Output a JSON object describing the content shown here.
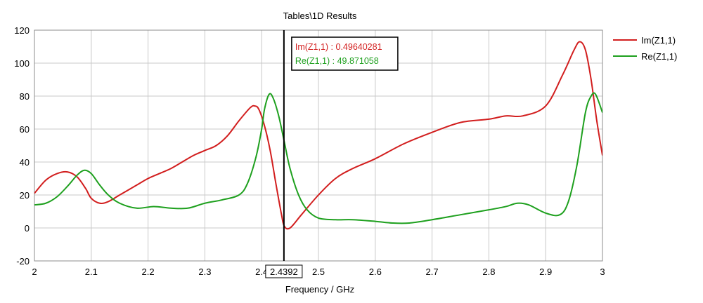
{
  "colors": {
    "im": "#d21e1e",
    "re": "#1ea01e",
    "grid": "#c8c8c8",
    "axis": "#000000",
    "marker": "#000000"
  },
  "chart_data": {
    "type": "line",
    "title": "Tables\\1D Results",
    "xlabel": "Frequency / GHz",
    "ylabel": "",
    "xlim": [
      2,
      3
    ],
    "ylim": [
      -20,
      120
    ],
    "grid": true,
    "legend_placement": "right-top",
    "x_ticks": [
      {
        "value": 2,
        "label": "2"
      },
      {
        "value": 2.1,
        "label": "2.1"
      },
      {
        "value": 2.2,
        "label": "2.2"
      },
      {
        "value": 2.3,
        "label": "2.3"
      },
      {
        "value": 2.4,
        "label": "2.4"
      },
      {
        "value": 2.5,
        "label": "2.5"
      },
      {
        "value": 2.6,
        "label": "2.6"
      },
      {
        "value": 2.7,
        "label": "2.7"
      },
      {
        "value": 2.8,
        "label": "2.8"
      },
      {
        "value": 2.9,
        "label": "2.9"
      },
      {
        "value": 3,
        "label": "3"
      }
    ],
    "y_ticks": [
      {
        "value": 120,
        "label": "120"
      },
      {
        "value": 100,
        "label": "100"
      },
      {
        "value": 80,
        "label": "80"
      },
      {
        "value": 60,
        "label": "60"
      },
      {
        "value": 40,
        "label": "40"
      },
      {
        "value": 20,
        "label": "20"
      },
      {
        "value": 0,
        "label": "0"
      },
      {
        "value": -20,
        "label": "-20"
      }
    ],
    "series": [
      {
        "name": "Im(Z1,1)",
        "color": "#d21e1e",
        "x": [
          2.0,
          2.02,
          2.04,
          2.058,
          2.075,
          2.09,
          2.1,
          2.115,
          2.13,
          2.15,
          2.18,
          2.2,
          2.22,
          2.24,
          2.26,
          2.28,
          2.3,
          2.32,
          2.34,
          2.36,
          2.38,
          2.388,
          2.395,
          2.405,
          2.415,
          2.425,
          2.435,
          2.44,
          2.45,
          2.47,
          2.5,
          2.53,
          2.56,
          2.6,
          2.65,
          2.7,
          2.75,
          2.8,
          2.83,
          2.86,
          2.9,
          2.93,
          2.95,
          2.96,
          2.97,
          2.98,
          2.99,
          3.0
        ],
        "y": [
          21,
          29,
          33,
          34,
          31,
          24,
          18,
          15,
          16,
          20,
          26,
          30,
          33,
          36,
          40,
          44,
          47,
          50,
          56,
          65,
          73,
          74,
          72,
          62,
          47,
          27,
          8,
          1,
          0,
          8,
          20,
          30,
          36,
          42,
          51,
          58,
          64,
          66,
          68,
          68,
          74,
          93,
          108,
          113,
          108,
          90,
          65,
          44
        ]
      },
      {
        "name": "Re(Z1,1)",
        "color": "#1ea01e",
        "x": [
          2.0,
          2.02,
          2.04,
          2.06,
          2.075,
          2.088,
          2.1,
          2.115,
          2.13,
          2.15,
          2.18,
          2.21,
          2.24,
          2.27,
          2.3,
          2.33,
          2.36,
          2.375,
          2.39,
          2.4,
          2.405,
          2.413,
          2.42,
          2.43,
          2.44,
          2.45,
          2.465,
          2.48,
          2.5,
          2.53,
          2.56,
          2.6,
          2.63,
          2.66,
          2.7,
          2.75,
          2.8,
          2.83,
          2.85,
          2.87,
          2.9,
          2.925,
          2.94,
          2.955,
          2.97,
          2.98,
          2.988,
          3.0
        ],
        "y": [
          14,
          15,
          19,
          26,
          32,
          35,
          33,
          26,
          20,
          15,
          12,
          13,
          12,
          12,
          15,
          17,
          20,
          27,
          43,
          60,
          72,
          81,
          79,
          68,
          52,
          36,
          20,
          11,
          6,
          5,
          5,
          4,
          3,
          3,
          5,
          8,
          11,
          13,
          15,
          14,
          9,
          8,
          16,
          38,
          70,
          80,
          81,
          70
        ]
      }
    ],
    "marker": {
      "x": 2.4392,
      "label": "2.4392",
      "readouts": [
        {
          "text": "Im(Z1,1) : 0.49640281",
          "color": "#d21e1e"
        },
        {
          "text": "Re(Z1,1) : 49.871058",
          "color": "#1ea01e"
        }
      ]
    }
  }
}
